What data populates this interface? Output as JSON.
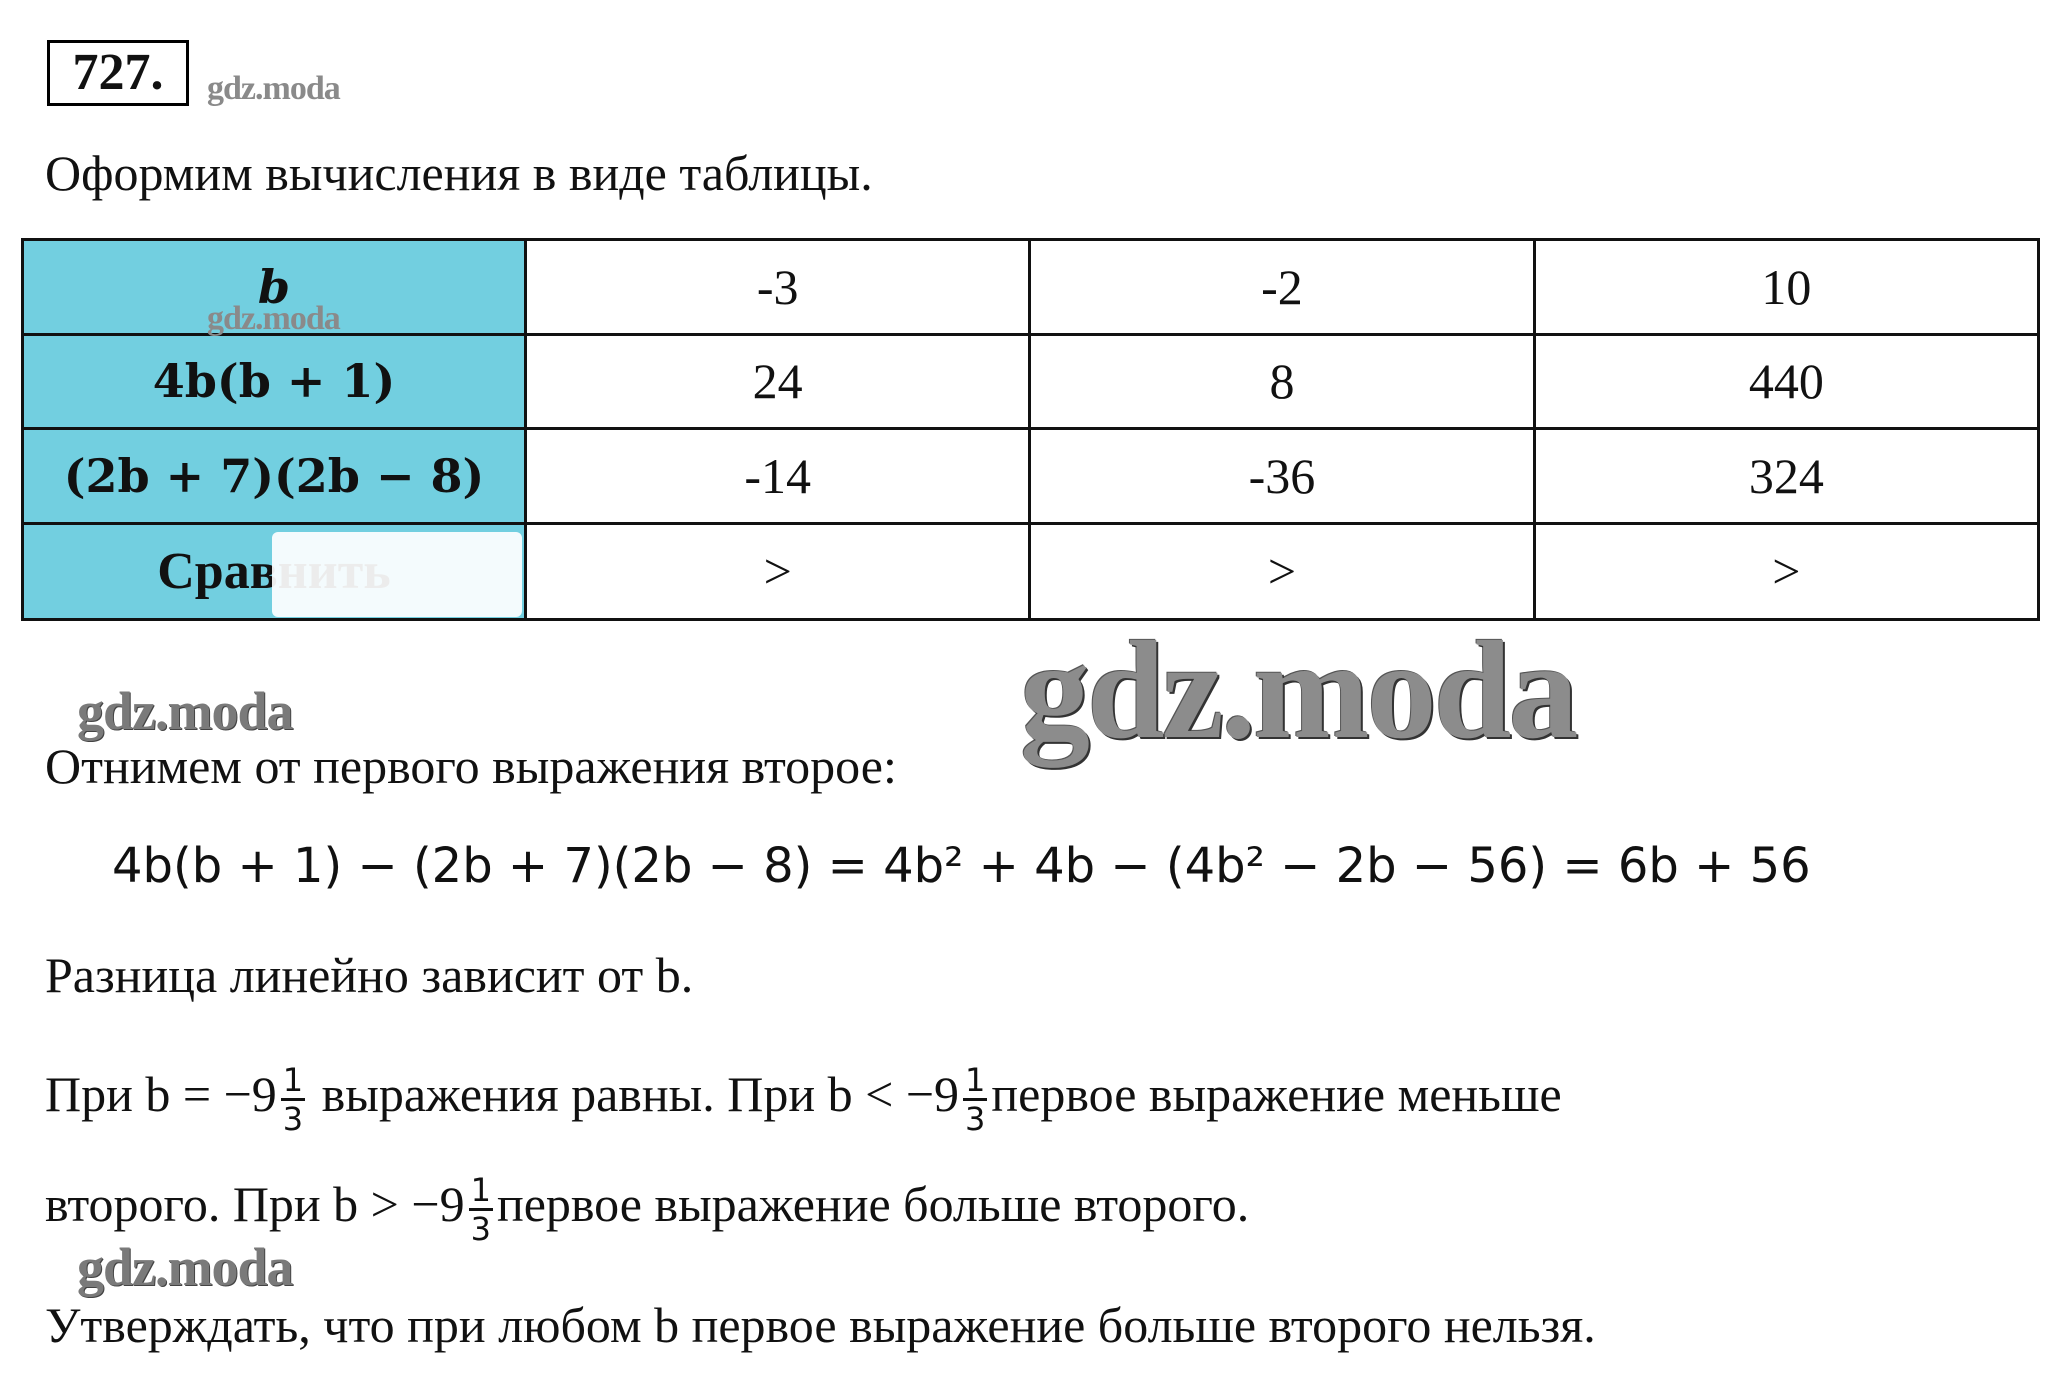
{
  "problem_number": "727.",
  "watermark": "gdz.moda",
  "intro": "Оформим вычисления в виде таблицы.",
  "table": {
    "header_color": "#72cfe0",
    "rows": [
      {
        "label": "b",
        "values": [
          "-3",
          "-2",
          "10"
        ]
      },
      {
        "label": "4b(b + 1)",
        "values": [
          "24",
          "8",
          "440"
        ]
      },
      {
        "label": "(2b + 7)(2b − 8)",
        "values": [
          "-14",
          "-36",
          "324"
        ]
      },
      {
        "label": "Сравнить",
        "values": [
          ">",
          ">",
          ">"
        ]
      }
    ]
  },
  "subtract_line": "Отнимем от первого выражения второе:",
  "equation": "4b(b + 1) −  (2b + 7)(2b − 8) = 4b² + 4b − (4b² − 2b − 56) = 6b + 56",
  "linear_line": "Разница линейно зависит от b.",
  "conclusion": {
    "p1_a": "При b = −9",
    "p1_b": "выражения равны. При b < −9",
    "p1_c": "первое выражение меньше",
    "p2_a": "второго. При b > −9",
    "p2_b": "первое выражение больше второго.",
    "frac_num": "1",
    "frac_den": "3"
  },
  "final_line": "Утверждать, что при любом b первое выражение больше второго нельзя."
}
